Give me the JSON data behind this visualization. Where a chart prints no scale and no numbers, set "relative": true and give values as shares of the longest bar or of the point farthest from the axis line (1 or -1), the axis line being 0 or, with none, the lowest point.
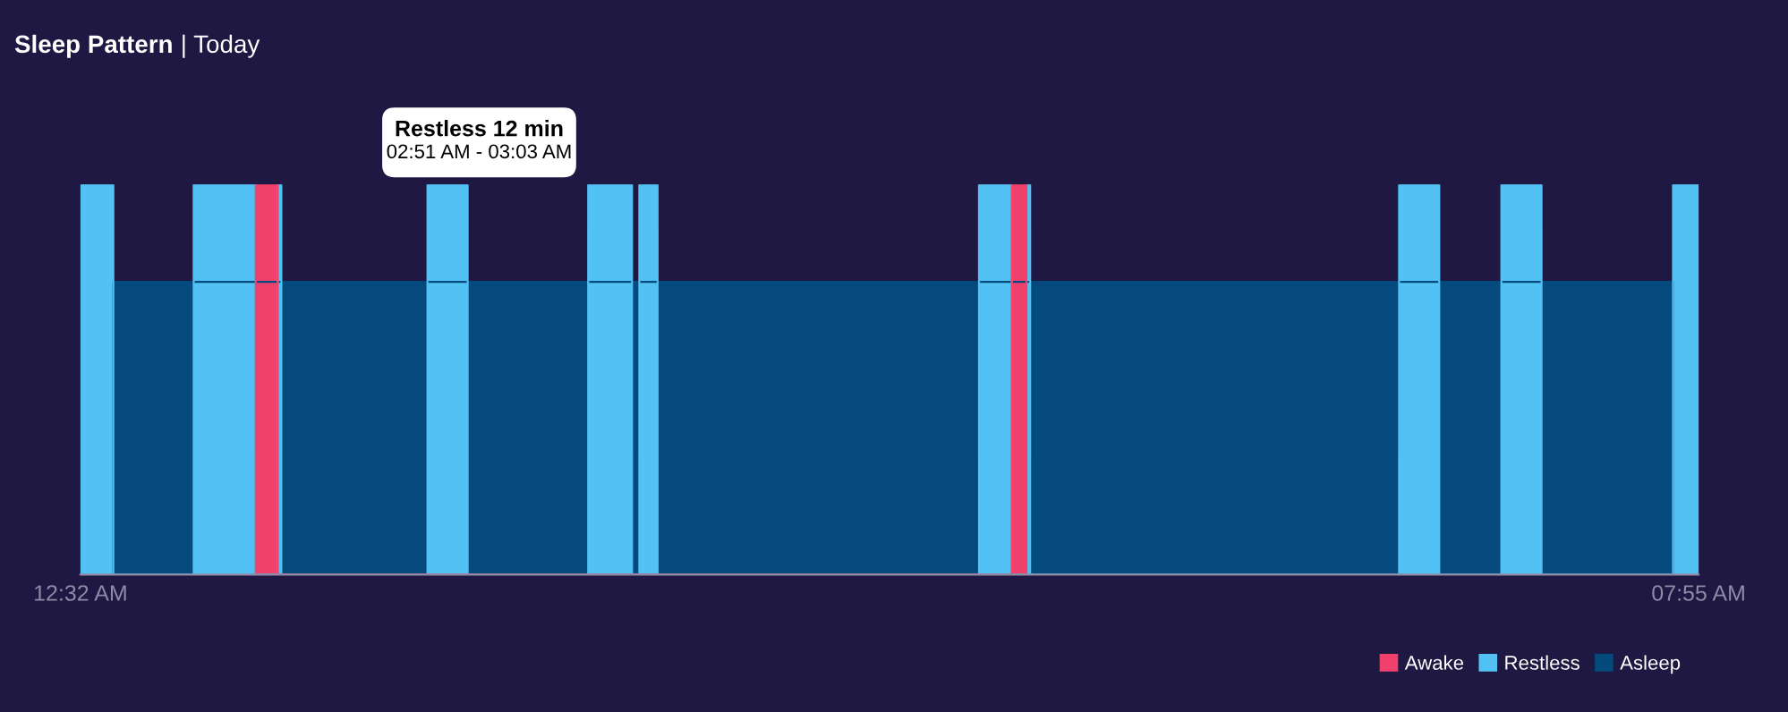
{
  "chart_data": {
    "type": "area",
    "title": "Sleep Pattern",
    "subtitle": "| Today",
    "relative": true,
    "xlim": [
      0.5333,
      7.9167
    ],
    "xticks": [
      {
        "value": 0.5333,
        "label": "12:32 AM"
      },
      {
        "value": 7.9167,
        "label": "07:55 AM"
      }
    ],
    "series": [
      {
        "name": "Awake",
        "color": "#f0406c",
        "x": [
          1.3333,
          1.3333,
          1.4333,
          1.4333,
          4.7833,
          4.7833,
          4.85,
          4.85
        ],
        "values": [
          0,
          1,
          1,
          0,
          0,
          1,
          1,
          0
        ]
      },
      {
        "name": "Restless",
        "color": "#52c1f3",
        "x": [
          0.5333,
          0.5333,
          0.6833,
          0.6833,
          1.05,
          1.05,
          1.3333,
          1.3333,
          1.4333,
          1.4333,
          1.45,
          1.45,
          2.1167,
          2.1167,
          2.3,
          2.3,
          2.85,
          2.85,
          3.05,
          3.05,
          3.0833,
          3.0833,
          3.1667,
          3.1667,
          4.6333,
          4.6333,
          4.7833,
          4.7833,
          4.85,
          4.85,
          4.8667,
          4.8667,
          6.55,
          6.55,
          6.7333,
          6.7333,
          7.0167,
          7.0167,
          7.2,
          7.2,
          7.8,
          7.8,
          7.9167,
          7.9167
        ],
        "values": [
          0,
          1,
          1,
          0,
          0,
          1,
          1,
          0,
          0,
          1,
          1,
          0,
          0,
          1,
          1,
          0,
          0,
          1,
          1,
          0,
          0,
          1,
          1,
          0,
          0,
          1,
          1,
          0,
          0,
          1,
          1,
          0,
          0,
          1,
          1,
          0,
          0,
          1,
          1,
          0,
          0,
          1,
          1,
          0
        ]
      },
      {
        "name": "Asleep",
        "color": "#044a7c",
        "x": [
          0.6833,
          0.6833,
          7.8,
          7.8
        ],
        "values": [
          0,
          0.75,
          0.75,
          0
        ]
      }
    ],
    "annotations": [
      "Restless 12 min\n02:51 AM - 03:03 AM"
    ],
    "legend": "bottom right",
    "grid": false
  }
}
